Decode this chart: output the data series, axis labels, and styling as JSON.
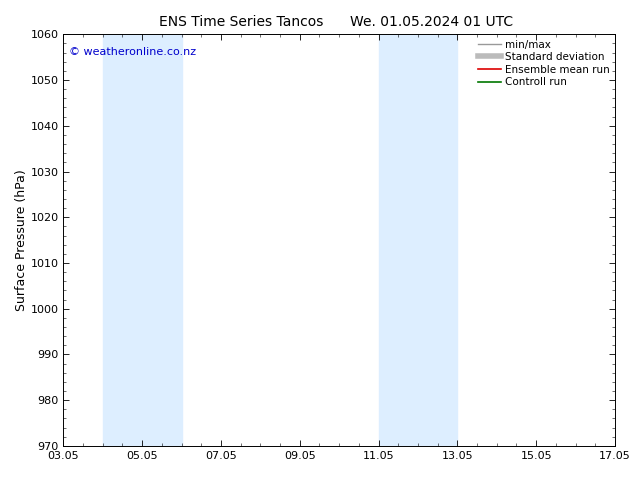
{
  "title_left": "ENS Time Series Tancos",
  "title_right": "We. 01.05.2024 01 UTC",
  "ylabel": "Surface Pressure (hPa)",
  "ylim": [
    970,
    1060
  ],
  "yticks": [
    970,
    980,
    990,
    1000,
    1010,
    1020,
    1030,
    1040,
    1050,
    1060
  ],
  "xtick_labels": [
    "03.05",
    "05.05",
    "07.05",
    "09.05",
    "11.05",
    "13.05",
    "15.05",
    "17.05"
  ],
  "xtick_positions": [
    0,
    2,
    4,
    6,
    8,
    10,
    12,
    14
  ],
  "xlim": [
    0,
    14
  ],
  "shaded_bands": [
    {
      "x_start": 1.0,
      "x_end": 3.0
    },
    {
      "x_start": 8.0,
      "x_end": 10.0
    }
  ],
  "shaded_color": "#ddeeff",
  "copyright_text": "© weatheronline.co.nz",
  "copyright_color": "#0000cc",
  "legend_items": [
    {
      "label": "min/max",
      "color": "#999999",
      "lw": 1.0
    },
    {
      "label": "Standard deviation",
      "color": "#bbbbbb",
      "lw": 4.0
    },
    {
      "label": "Ensemble mean run",
      "color": "#dd0000",
      "lw": 1.2
    },
    {
      "label": "Controll run",
      "color": "#007700",
      "lw": 1.2
    }
  ],
  "bg_color": "#ffffff",
  "title_fontsize": 10,
  "axis_label_fontsize": 9,
  "tick_fontsize": 8,
  "copyright_fontsize": 8,
  "legend_fontsize": 7.5
}
